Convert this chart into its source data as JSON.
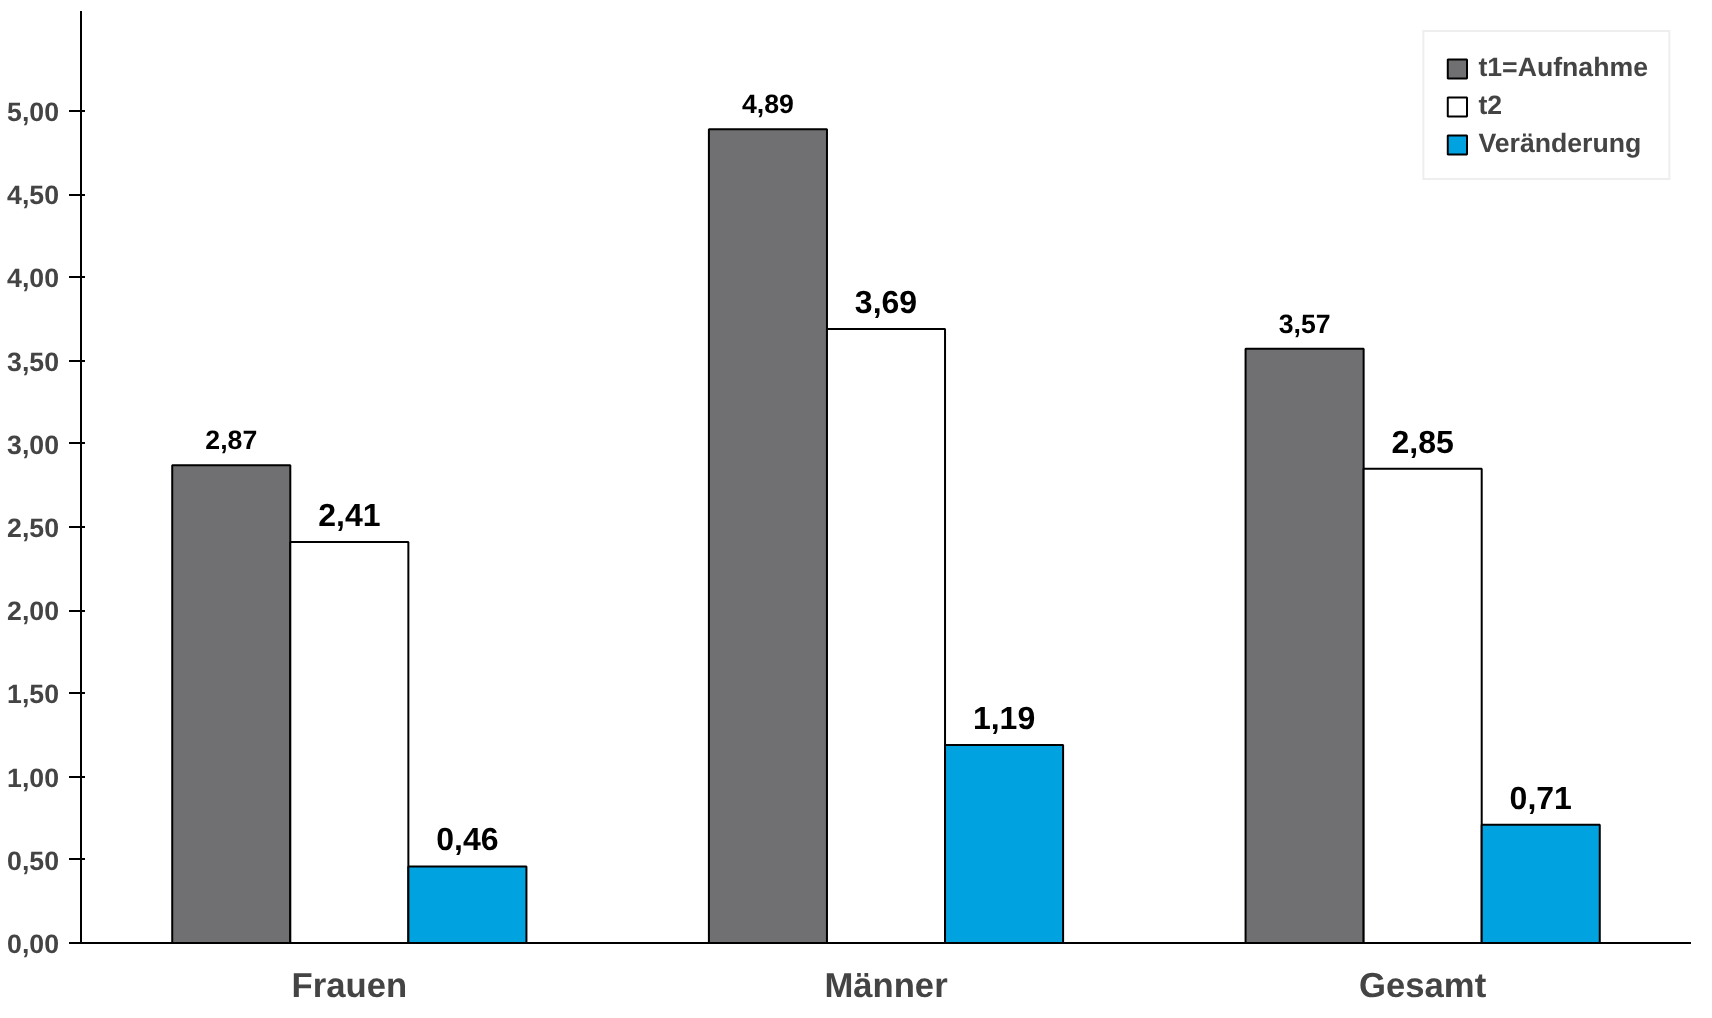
{
  "chart_data": {
    "type": "bar",
    "categories": [
      "Frauen",
      "Männer",
      "Gesamt"
    ],
    "series": [
      {
        "name": "t1=Aufnahme",
        "color": "#707073",
        "values": [
          2.87,
          4.89,
          3.57
        ],
        "value_labels": [
          "2,87",
          "4,89",
          "3,57"
        ]
      },
      {
        "name": "t2",
        "color": "#ffffff",
        "values": [
          2.41,
          3.69,
          2.85
        ],
        "value_labels": [
          "2,41",
          "3,69",
          "2,85"
        ]
      },
      {
        "name": "Veränderung",
        "color": "#00a3e0",
        "values": [
          0.46,
          1.19,
          0.71
        ],
        "value_labels": [
          "0,46",
          "1,19",
          "0,71"
        ]
      }
    ],
    "ylim": [
      0,
      5.6
    ],
    "yticks": [
      {
        "value": 0,
        "label": "0,00"
      },
      {
        "value": 0.5,
        "label": "0,50"
      },
      {
        "value": 1,
        "label": "1,00"
      },
      {
        "value": 1.5,
        "label": "1,50"
      },
      {
        "value": 2,
        "label": "2,00"
      },
      {
        "value": 2.5,
        "label": "2,50"
      },
      {
        "value": 3,
        "label": "3,00"
      },
      {
        "value": 3.5,
        "label": "3,50"
      },
      {
        "value": 4,
        "label": "4,00"
      },
      {
        "value": 4.5,
        "label": "4,50"
      },
      {
        "value": 5,
        "label": "5,00"
      }
    ],
    "grid": false,
    "legend": "top right"
  }
}
